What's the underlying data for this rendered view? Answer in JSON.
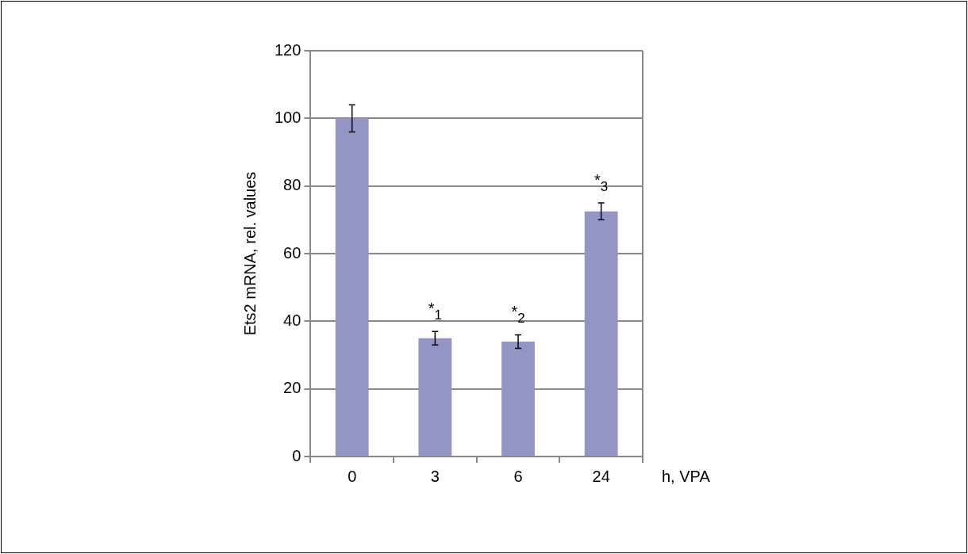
{
  "chart_data": {
    "type": "bar",
    "ylabel": "Ets2 mRNA, rel. values",
    "xlabel": "h, VPA",
    "categories": [
      "0",
      "3",
      "6",
      "24"
    ],
    "values": [
      100,
      35,
      34,
      72.5
    ],
    "errors": [
      4,
      2,
      2,
      2.5
    ],
    "color": "#9595c5",
    "ylim": [
      0,
      120
    ],
    "yticks": [
      0,
      20,
      40,
      60,
      80,
      100,
      120
    ],
    "grid": "y",
    "legend": false,
    "annotations": [
      {
        "text": "*$_{1}$",
        "x": "3",
        "y": 35
      },
      {
        "text": "*$_{2}$",
        "x": "6",
        "y": 34
      },
      {
        "text": "*$_{3}$",
        "x": "24",
        "y": 72.5
      }
    ]
  }
}
